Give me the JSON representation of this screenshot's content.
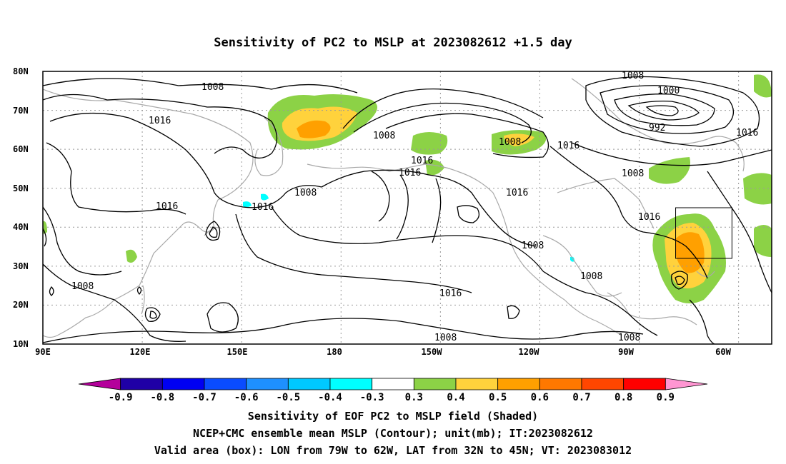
{
  "title": "Sensitivity of PC2 to MSLP at 2023082612 +1.5 day",
  "lat_labels": [
    "80N",
    "70N",
    "60N",
    "50N",
    "40N",
    "30N",
    "20N",
    "10N"
  ],
  "lon_labels": [
    "90E",
    "120E",
    "150E",
    "180",
    "150W",
    "120W",
    "90W",
    "60W"
  ],
  "colorbar": {
    "ticks": [
      "-0.9",
      "-0.8",
      "-0.7",
      "-0.6",
      "-0.5",
      "-0.4",
      "-0.3",
      "0.3",
      "0.4",
      "0.5",
      "0.6",
      "0.7",
      "0.8",
      "0.9"
    ],
    "colors": [
      "#b4009b",
      "#1f00a6",
      "#0000f2",
      "#0a4cff",
      "#1e90ff",
      "#00c8ff",
      "#00ffff",
      "#ffffff",
      "#8cd246",
      "#ffd23c",
      "#ffa000",
      "#ff7800",
      "#ff4600",
      "#ff0000",
      "#ff96d2"
    ]
  },
  "contour_labels": [
    "1008",
    "1000",
    "992",
    "1016",
    "1008",
    "1016",
    "1008",
    "1016",
    "1016",
    "1008",
    "1016",
    "1016",
    "1016",
    "1016",
    "1008",
    "1016",
    "1008",
    "1008",
    "1008",
    "1008",
    "1008",
    "1016",
    "1008",
    "1016"
  ],
  "captions": [
    "Sensitivity of EOF PC2 to MSLP field (Shaded)",
    "NCEP+CMC ensemble mean MSLP (Contour); unit(mb); IT:2023082612",
    "Valid area (box): LON from 79W to 62W, LAT from 32N to 45N; VT: 2023083012"
  ],
  "valid_area_box": {
    "lon_min": -79,
    "lon_max": -62,
    "lat_min": 32,
    "lat_max": 45
  },
  "colors": {
    "coast": "#a9a9a9",
    "contour": "#000000",
    "grid": "#999999"
  }
}
